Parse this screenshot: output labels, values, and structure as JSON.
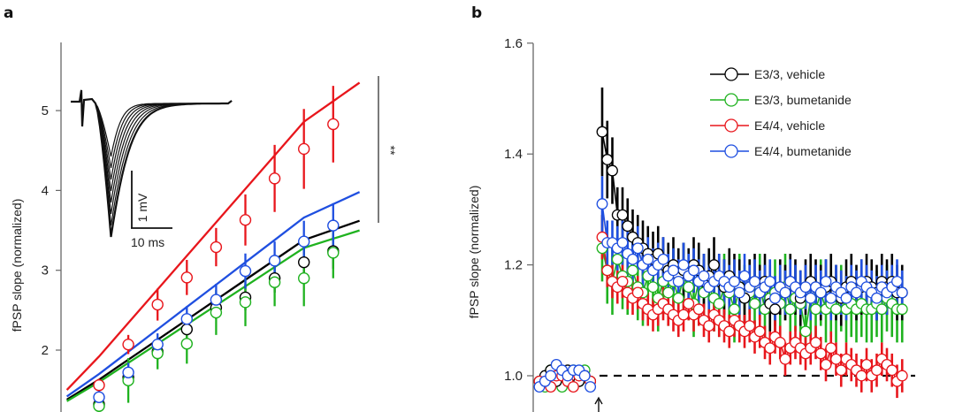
{
  "figure": {
    "panel_a_letter": "a",
    "panel_b_letter": "b"
  },
  "chart_data": [
    {
      "panel": "a",
      "type": "scatter",
      "title": "",
      "xlabel": "",
      "ylabel": "fPSP slope (normalized)",
      "ylim": [
        1.0,
        5.8
      ],
      "yticks": [
        2,
        3,
        4,
        5
      ],
      "ytick_labels": [
        "2",
        "3",
        "4",
        "5"
      ],
      "x": [
        1,
        2,
        3,
        4,
        5,
        6,
        7,
        8,
        9
      ],
      "xlim": [
        -0.4,
        9.9
      ],
      "grid": false,
      "series": [
        {
          "name": "E3/3, vehicle",
          "color": "#000000",
          "values": [
            1.32,
            1.66,
            1.98,
            2.26,
            2.53,
            2.66,
            2.9,
            3.1,
            3.24
          ],
          "errors": [
            0.1,
            0.1,
            0.1,
            0.12,
            0.14,
            0.16,
            0.18,
            0.2,
            0.22
          ],
          "fit": [
            1.38,
            1.63,
            1.88,
            2.13,
            2.38,
            2.63,
            2.88,
            3.13,
            3.38,
            3.62
          ]
        },
        {
          "name": "E3/3, bumetanide",
          "color": "#1fb21f",
          "values": [
            1.3,
            1.62,
            1.96,
            2.08,
            2.47,
            2.6,
            2.85,
            2.9,
            3.22
          ],
          "errors": [
            0.14,
            0.28,
            0.2,
            0.25,
            0.28,
            0.3,
            0.3,
            0.35,
            0.32
          ],
          "fit": [
            1.36,
            1.6,
            1.84,
            2.08,
            2.32,
            2.56,
            2.8,
            3.04,
            3.28,
            3.5
          ]
        },
        {
          "name": "E4/4, vehicle",
          "color": "#e8161c",
          "values": [
            1.56,
            2.07,
            2.57,
            2.91,
            3.29,
            3.63,
            4.15,
            4.52,
            4.83
          ],
          "errors": [
            0.08,
            0.12,
            0.2,
            0.22,
            0.24,
            0.32,
            0.42,
            0.5,
            0.48
          ],
          "fit": [
            1.5,
            1.92,
            2.34,
            2.76,
            3.18,
            3.6,
            4.02,
            4.44,
            4.86,
            5.35
          ]
        },
        {
          "name": "E4/4, bumetanide",
          "color": "#1f4fe0",
          "values": [
            1.41,
            1.72,
            2.07,
            2.39,
            2.63,
            2.99,
            3.12,
            3.36,
            3.56
          ],
          "errors": [
            0.1,
            0.12,
            0.14,
            0.16,
            0.2,
            0.22,
            0.24,
            0.26,
            0.28
          ],
          "fit": [
            1.42,
            1.7,
            1.98,
            2.26,
            2.54,
            2.82,
            3.1,
            3.38,
            3.66,
            3.98
          ]
        }
      ],
      "annotations": {
        "significance": "**",
        "significance_range": [
          3.62,
          5.35
        ],
        "scale_bar_voltage": "1 mV",
        "scale_bar_time": "10 ms",
        "inset": "fPSP traces (8 overlaid sweeps of increasing amplitude)"
      }
    },
    {
      "panel": "b",
      "type": "scatter",
      "title": "",
      "xlabel": "",
      "ylabel": "fPSP slope (normalized)",
      "ylim": [
        0.94,
        1.6
      ],
      "yticks": [
        1.0,
        1.2,
        1.4,
        1.6
      ],
      "ytick_labels": [
        "1.0",
        "1.2",
        "1.4",
        "1.6"
      ],
      "grid": false,
      "legend": "top-right",
      "baseline_reference": 1.0,
      "stimulus_marker": "arrow at induction time",
      "series": [
        {
          "name": "E3/3, vehicle",
          "color": "#000000",
          "baseline": [
            0.99,
            1.0,
            1.01,
            0.99,
            1.0,
            1.01,
            1.0,
            0.99,
            1.0,
            0.99
          ],
          "post": [
            1.44,
            1.39,
            1.37,
            1.29,
            1.29,
            1.27,
            1.25,
            1.24,
            1.23,
            1.22,
            1.21,
            1.22,
            1.2,
            1.19,
            1.2,
            1.18,
            1.19,
            1.18,
            1.2,
            1.19,
            1.17,
            1.18,
            1.2,
            1.17,
            1.16,
            1.18,
            1.17,
            1.16,
            1.14,
            1.16,
            1.17,
            1.15,
            1.17,
            1.13,
            1.12,
            1.16,
            1.15,
            1.17,
            1.16,
            1.14,
            1.16,
            1.17,
            1.16,
            1.15,
            1.16,
            1.17,
            1.15,
            1.14,
            1.16,
            1.17,
            1.15,
            1.16,
            1.17,
            1.16,
            1.15,
            1.17,
            1.16,
            1.17,
            1.15,
            1.15
          ],
          "post_err": [
            0.08,
            0.07,
            0.06,
            0.05,
            0.05,
            0.05,
            0.05,
            0.05,
            0.05,
            0.05,
            0.05,
            0.05,
            0.05,
            0.05,
            0.05,
            0.05,
            0.05,
            0.05,
            0.05,
            0.05,
            0.05,
            0.05,
            0.05,
            0.05,
            0.05,
            0.05,
            0.05,
            0.05,
            0.05,
            0.05,
            0.05,
            0.05,
            0.05,
            0.05,
            0.05,
            0.05,
            0.05,
            0.05,
            0.05,
            0.05,
            0.05,
            0.05,
            0.05,
            0.05,
            0.05,
            0.05,
            0.05,
            0.05,
            0.05,
            0.05,
            0.05,
            0.05,
            0.05,
            0.05,
            0.05,
            0.05,
            0.05,
            0.05,
            0.05,
            0.05
          ]
        },
        {
          "name": "E3/3, bumetanide",
          "color": "#1fb21f",
          "baseline": [
            0.99,
            0.98,
            1.01,
            0.99,
            0.98,
            1.0,
            1.01,
            0.99,
            1.01,
            0.99
          ],
          "post": [
            1.23,
            1.19,
            1.17,
            1.21,
            1.18,
            1.17,
            1.19,
            1.16,
            1.15,
            1.18,
            1.16,
            1.14,
            1.17,
            1.15,
            1.17,
            1.14,
            1.18,
            1.16,
            1.13,
            1.17,
            1.15,
            1.16,
            1.14,
            1.13,
            1.16,
            1.15,
            1.12,
            1.16,
            1.14,
            1.15,
            1.13,
            1.16,
            1.12,
            1.14,
            1.15,
            1.13,
            1.16,
            1.12,
            1.14,
            1.13,
            1.08,
            1.14,
            1.12,
            1.15,
            1.12,
            1.13,
            1.12,
            1.14,
            1.12,
            1.13,
            1.12,
            1.13,
            1.12,
            1.12,
            1.13,
            1.12,
            1.14,
            1.13,
            1.12,
            1.12
          ],
          "post_err": [
            0.06,
            0.06,
            0.06,
            0.06,
            0.06,
            0.06,
            0.06,
            0.06,
            0.06,
            0.06,
            0.06,
            0.06,
            0.06,
            0.06,
            0.06,
            0.06,
            0.06,
            0.06,
            0.06,
            0.06,
            0.06,
            0.06,
            0.06,
            0.06,
            0.06,
            0.06,
            0.06,
            0.06,
            0.06,
            0.06,
            0.06,
            0.06,
            0.06,
            0.06,
            0.06,
            0.06,
            0.06,
            0.06,
            0.06,
            0.06,
            0.03,
            0.06,
            0.06,
            0.06,
            0.06,
            0.06,
            0.06,
            0.06,
            0.06,
            0.06,
            0.06,
            0.06,
            0.06,
            0.06,
            0.06,
            0.06,
            0.06,
            0.06,
            0.06,
            0.06
          ]
        },
        {
          "name": "E4/4, vehicle",
          "color": "#e8161c",
          "baseline": [
            0.99,
            0.99,
            0.98,
            1.0,
            1.0,
            0.99,
            0.98,
            1.0,
            1.0,
            0.99
          ],
          "post": [
            1.25,
            1.19,
            1.17,
            1.16,
            1.17,
            1.15,
            1.14,
            1.15,
            1.13,
            1.12,
            1.11,
            1.12,
            1.13,
            1.12,
            1.11,
            1.1,
            1.11,
            1.13,
            1.11,
            1.12,
            1.1,
            1.09,
            1.11,
            1.1,
            1.09,
            1.08,
            1.1,
            1.09,
            1.08,
            1.09,
            1.07,
            1.08,
            1.06,
            1.05,
            1.07,
            1.06,
            1.03,
            1.05,
            1.06,
            1.05,
            1.04,
            1.05,
            1.06,
            1.04,
            1.02,
            1.05,
            1.03,
            1.01,
            1.03,
            1.02,
            1.01,
            1.0,
            1.02,
            1.0,
            1.01,
            1.03,
            1.02,
            1.01,
            0.99,
            1.0
          ],
          "post_err": [
            0.04,
            0.03,
            0.03,
            0.03,
            0.03,
            0.03,
            0.03,
            0.03,
            0.03,
            0.03,
            0.03,
            0.03,
            0.03,
            0.03,
            0.03,
            0.03,
            0.03,
            0.03,
            0.03,
            0.03,
            0.03,
            0.03,
            0.03,
            0.03,
            0.03,
            0.03,
            0.03,
            0.03,
            0.03,
            0.03,
            0.03,
            0.03,
            0.03,
            0.03,
            0.03,
            0.03,
            0.03,
            0.03,
            0.03,
            0.03,
            0.03,
            0.03,
            0.03,
            0.03,
            0.03,
            0.03,
            0.03,
            0.03,
            0.03,
            0.03,
            0.03,
            0.03,
            0.03,
            0.03,
            0.03,
            0.03,
            0.03,
            0.03,
            0.03,
            0.03
          ]
        },
        {
          "name": "E4/4, bumetanide",
          "color": "#1f4fe0",
          "baseline": [
            0.98,
            0.99,
            1.0,
            1.02,
            1.01,
            1.0,
            1.01,
            1.01,
            1.0,
            0.98
          ],
          "post": [
            1.31,
            1.24,
            1.24,
            1.23,
            1.24,
            1.22,
            1.21,
            1.23,
            1.2,
            1.21,
            1.19,
            1.2,
            1.21,
            1.18,
            1.19,
            1.17,
            1.2,
            1.18,
            1.19,
            1.17,
            1.18,
            1.16,
            1.17,
            1.18,
            1.17,
            1.16,
            1.17,
            1.15,
            1.18,
            1.16,
            1.17,
            1.15,
            1.16,
            1.17,
            1.14,
            1.16,
            1.15,
            1.17,
            1.16,
            1.15,
            1.16,
            1.14,
            1.16,
            1.15,
            1.17,
            1.14,
            1.16,
            1.15,
            1.14,
            1.16,
            1.15,
            1.17,
            1.16,
            1.15,
            1.14,
            1.16,
            1.15,
            1.16,
            1.17,
            1.15
          ],
          "post_err": [
            0.05,
            0.04,
            0.04,
            0.04,
            0.04,
            0.04,
            0.04,
            0.04,
            0.04,
            0.04,
            0.04,
            0.04,
            0.04,
            0.04,
            0.04,
            0.04,
            0.04,
            0.04,
            0.04,
            0.04,
            0.04,
            0.04,
            0.04,
            0.04,
            0.04,
            0.04,
            0.04,
            0.04,
            0.04,
            0.04,
            0.04,
            0.04,
            0.04,
            0.04,
            0.04,
            0.04,
            0.04,
            0.04,
            0.04,
            0.04,
            0.04,
            0.04,
            0.04,
            0.04,
            0.04,
            0.04,
            0.04,
            0.04,
            0.04,
            0.04,
            0.04,
            0.04,
            0.04,
            0.04,
            0.04,
            0.04,
            0.04,
            0.04,
            0.04,
            0.04
          ]
        }
      ]
    }
  ]
}
